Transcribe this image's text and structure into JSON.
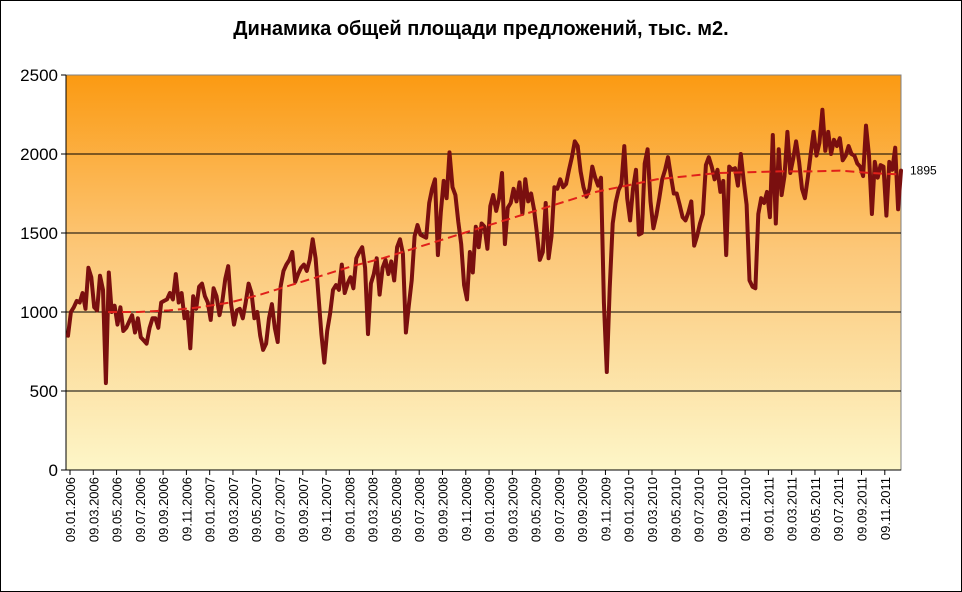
{
  "chart_data": {
    "type": "line",
    "title": "Динамика общей площади предложений, тыс. м2.",
    "xlabel": "",
    "ylabel": "",
    "ylim": [
      0,
      2500
    ],
    "y_ticks": [
      "0",
      "500",
      "1000",
      "1500",
      "2000",
      "2500"
    ],
    "x_ticks": [
      "09.01.2006",
      "09.03.2006",
      "09.05.2006",
      "09.07.2006",
      "09.09.2006",
      "09.11.2006",
      "09.01.2007",
      "09.03.2007",
      "09.05.2007",
      "09.07.2007",
      "09.09.2007",
      "09.11.2007",
      "09.01.2008",
      "09.03.2008",
      "09.05.2008",
      "09.07.2008",
      "09.09.2008",
      "09.11.2008",
      "09.01.2009",
      "09.03.2009",
      "09.05.2009",
      "09.07.2009",
      "09.09.2009",
      "09.11.2009",
      "09.01.2010",
      "09.03.2010",
      "09.05.2010",
      "09.07.2010",
      "09.09.2010",
      "09.11.2010",
      "09.01.2011",
      "09.03.2011",
      "09.05.2011",
      "09.07.2011",
      "09.09.2011",
      "09.11.2011"
    ],
    "grid": true,
    "end_label": "1895",
    "colors": {
      "series": "#7a0f0f",
      "trend": "#e0201a",
      "plot_top": "#fb9a12",
      "plot_bottom": "#fdf6c8"
    },
    "series": [
      {
        "values": [
          850,
          1000,
          1030,
          1070,
          1060,
          1120,
          1020,
          1280,
          1220,
          1030,
          1010,
          1230,
          1140,
          550,
          1250,
          1000,
          1040,
          920,
          1030,
          880,
          900,
          940,
          980,
          870,
          960,
          840,
          820,
          800,
          900,
          960,
          960,
          900,
          1060,
          1070,
          1080,
          1120,
          1080,
          1240,
          1060,
          1120,
          960,
          1000,
          770,
          1100,
          1020,
          1160,
          1180,
          1100,
          1060,
          950,
          1150,
          1100,
          980,
          1070,
          1210,
          1290,
          1050,
          920,
          1010,
          1020,
          960,
          1060,
          1180,
          1120,
          960,
          1000,
          850,
          760,
          800,
          960,
          1050,
          900,
          810,
          1160,
          1260,
          1300,
          1330,
          1380,
          1190,
          1240,
          1280,
          1300,
          1260,
          1330,
          1460,
          1340,
          1100,
          860,
          680,
          880,
          990,
          1140,
          1170,
          1140,
          1300,
          1120,
          1180,
          1220,
          1150,
          1340,
          1380,
          1410,
          1280,
          860,
          1180,
          1240,
          1340,
          1110,
          1280,
          1330,
          1240,
          1320,
          1200,
          1410,
          1460,
          1370,
          870,
          1040,
          1200,
          1480,
          1550,
          1490,
          1480,
          1470,
          1690,
          1780,
          1840,
          1360,
          1630,
          1830,
          1720,
          2010,
          1790,
          1740,
          1570,
          1430,
          1170,
          1080,
          1380,
          1250,
          1540,
          1410,
          1560,
          1540,
          1400,
          1670,
          1740,
          1640,
          1720,
          1880,
          1430,
          1660,
          1690,
          1780,
          1700,
          1820,
          1620,
          1840,
          1700,
          1750,
          1650,
          1500,
          1330,
          1380,
          1690,
          1340,
          1480,
          1790,
          1780,
          1840,
          1790,
          1810,
          1900,
          1980,
          2080,
          2050,
          1890,
          1790,
          1730,
          1780,
          1920,
          1850,
          1800,
          1850,
          1060,
          620,
          1150,
          1560,
          1690,
          1770,
          1810,
          2050,
          1720,
          1580,
          1780,
          1900,
          1490,
          1500,
          1940,
          2030,
          1700,
          1530,
          1610,
          1720,
          1840,
          1900,
          1980,
          1860,
          1750,
          1750,
          1680,
          1600,
          1580,
          1630,
          1700,
          1420,
          1480,
          1560,
          1620,
          1930,
          1980,
          1920,
          1840,
          1900,
          1760,
          1830,
          1360,
          1920,
          1900,
          1910,
          1800,
          2000,
          1830,
          1680,
          1200,
          1160,
          1150,
          1620,
          1720,
          1690,
          1760,
          1600,
          2120,
          1560,
          2030,
          1740,
          1860,
          2140,
          1880,
          1970,
          2080,
          1950,
          1780,
          1720,
          1850,
          2000,
          2140,
          1990,
          2070,
          2280,
          2020,
          2140,
          2000,
          2090,
          2050,
          2100,
          1960,
          1990,
          2050,
          2000,
          1990,
          1940,
          1920,
          1860,
          2180,
          1990,
          1620,
          1950,
          1850,
          1930,
          1920,
          1610,
          1950,
          1900,
          2040,
          1650,
          1895
        ]
      },
      {
        "name": "",
        "values": [
          1000,
          1000,
          1010,
          1030,
          1060,
          1110,
          1170,
          1230,
          1290,
          1340,
          1400,
          1460,
          1520,
          1580,
          1640,
          1700,
          1760,
          1800,
          1840,
          1860,
          1880,
          1885,
          1890,
          1890,
          1895,
          1880,
          1870
        ]
      }
    ]
  }
}
